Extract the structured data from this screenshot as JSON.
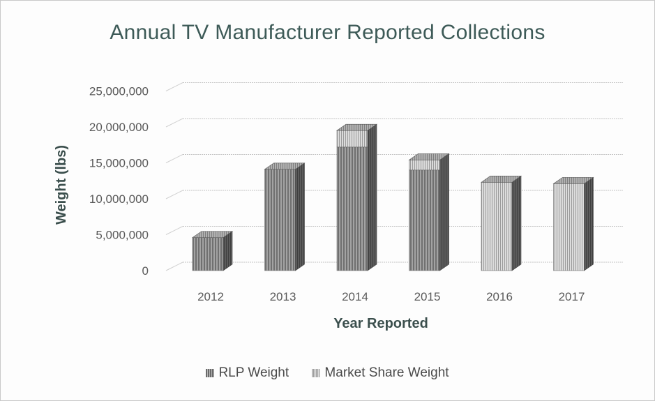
{
  "chart_data": {
    "type": "bar",
    "title": "Annual TV Manufacturer Reported Collections",
    "xlabel": "Year Reported",
    "ylabel": "Weight (lbs)",
    "categories": [
      "2012",
      "2013",
      "2014",
      "2015",
      "2016",
      "2017"
    ],
    "stacked": true,
    "series": [
      {
        "name": "RLP Weight",
        "values": [
          4600000,
          14100000,
          17200000,
          14000000,
          0,
          0
        ]
      },
      {
        "name": "Market Share Weight",
        "values": [
          0,
          0,
          2300000,
          1400000,
          12300000,
          12100000
        ]
      }
    ],
    "ylim": [
      0,
      25000000
    ],
    "yticks": [
      "0",
      "5,000,000",
      "10,000,000",
      "15,000,000",
      "20,000,000",
      "25,000,000"
    ],
    "grid": true,
    "legend_position": "bottom",
    "colors": {
      "rlp": "#7a7a7a",
      "market_share": "#b9b9b9",
      "side": "#4e4e4e",
      "top": "#9c9c9c"
    }
  }
}
